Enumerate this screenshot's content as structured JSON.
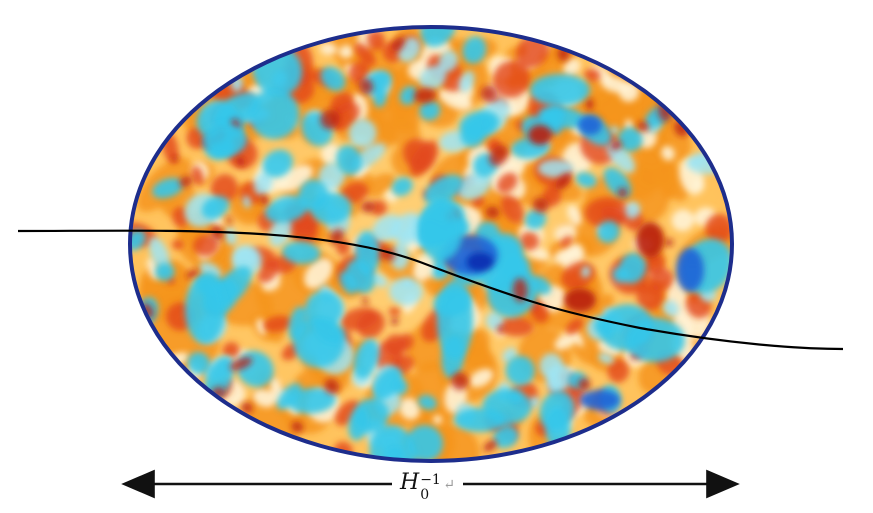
{
  "diagram": {
    "scale_label": {
      "symbol": "H",
      "subscript": "0",
      "superscript": "−1",
      "trailing_mark": "↵"
    },
    "colors": {
      "deep_red": "#b81e0e",
      "red": "#e2461d",
      "orange": "#f6951f",
      "light_orange": "#ffc25a",
      "cream": "#fff3d6",
      "cyan": "#35c7ea",
      "light_cyan": "#9fe5f4",
      "blue": "#1f63d6",
      "deep_blue": "#0b2fb0",
      "rim_blue": "#1d2d8c",
      "curve": "#000000",
      "arrow": "#111111"
    }
  }
}
